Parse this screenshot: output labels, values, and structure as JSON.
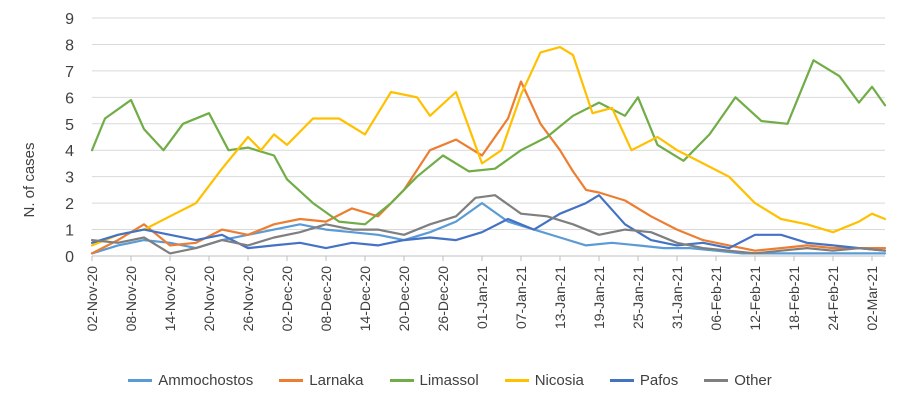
{
  "chart_data": {
    "type": "line",
    "ylabel": "N. of cases",
    "xlabel": "",
    "ylim": [
      0,
      9
    ],
    "yticks": [
      0,
      1,
      2,
      3,
      4,
      5,
      6,
      7,
      8,
      9
    ],
    "grid": true,
    "legend_position": "bottom",
    "x_start": "02-Nov-20",
    "x_end": "04-Mar-21",
    "x_ticks": [
      "02-Nov-20",
      "08-Nov-20",
      "14-Nov-20",
      "20-Nov-20",
      "26-Nov-20",
      "02-Dec-20",
      "08-Dec-20",
      "14-Dec-20",
      "20-Dec-20",
      "26-Dec-20",
      "01-Jan-21",
      "07-Jan-21",
      "13-Jan-21",
      "19-Jan-21",
      "25-Jan-21",
      "31-Jan-21",
      "06-Feb-21",
      "12-Feb-21",
      "18-Feb-21",
      "24-Feb-21",
      "02-Mar-21"
    ],
    "series": [
      {
        "name": "Ammochostos",
        "color": "#5b9bd5",
        "points": [
          [
            "02-Nov-20",
            0.1
          ],
          [
            "06-Nov-20",
            0.4
          ],
          [
            "10-Nov-20",
            0.6
          ],
          [
            "14-Nov-20",
            0.5
          ],
          [
            "18-Nov-20",
            0.3
          ],
          [
            "22-Nov-20",
            0.6
          ],
          [
            "26-Nov-20",
            0.8
          ],
          [
            "30-Nov-20",
            1.0
          ],
          [
            "04-Dec-20",
            1.2
          ],
          [
            "08-Dec-20",
            1.0
          ],
          [
            "12-Dec-20",
            0.9
          ],
          [
            "16-Dec-20",
            0.8
          ],
          [
            "20-Dec-20",
            0.6
          ],
          [
            "24-Dec-20",
            0.9
          ],
          [
            "28-Dec-20",
            1.3
          ],
          [
            "01-Jan-21",
            2.0
          ],
          [
            "05-Jan-21",
            1.3
          ],
          [
            "09-Jan-21",
            1.0
          ],
          [
            "13-Jan-21",
            0.7
          ],
          [
            "17-Jan-21",
            0.4
          ],
          [
            "21-Jan-21",
            0.5
          ],
          [
            "25-Jan-21",
            0.4
          ],
          [
            "29-Jan-21",
            0.3
          ],
          [
            "02-Feb-21",
            0.3
          ],
          [
            "06-Feb-21",
            0.2
          ],
          [
            "10-Feb-21",
            0.1
          ],
          [
            "14-Feb-21",
            0.1
          ],
          [
            "18-Feb-21",
            0.1
          ],
          [
            "22-Feb-21",
            0.1
          ],
          [
            "26-Feb-21",
            0.1
          ],
          [
            "04-Mar-21",
            0.1
          ]
        ]
      },
      {
        "name": "Larnaka",
        "color": "#ed7d31",
        "points": [
          [
            "02-Nov-20",
            0.1
          ],
          [
            "06-Nov-20",
            0.6
          ],
          [
            "10-Nov-20",
            1.2
          ],
          [
            "14-Nov-20",
            0.4
          ],
          [
            "18-Nov-20",
            0.5
          ],
          [
            "22-Nov-20",
            1.0
          ],
          [
            "26-Nov-20",
            0.8
          ],
          [
            "30-Nov-20",
            1.2
          ],
          [
            "04-Dec-20",
            1.4
          ],
          [
            "08-Dec-20",
            1.3
          ],
          [
            "12-Dec-20",
            1.8
          ],
          [
            "16-Dec-20",
            1.5
          ],
          [
            "20-Dec-20",
            2.5
          ],
          [
            "24-Dec-20",
            4.0
          ],
          [
            "28-Dec-20",
            4.4
          ],
          [
            "01-Jan-21",
            3.8
          ],
          [
            "05-Jan-21",
            5.2
          ],
          [
            "07-Jan-21",
            6.6
          ],
          [
            "10-Jan-21",
            5.0
          ],
          [
            "13-Jan-21",
            4.0
          ],
          [
            "15-Jan-21",
            3.2
          ],
          [
            "17-Jan-21",
            2.5
          ],
          [
            "19-Jan-21",
            2.4
          ],
          [
            "23-Jan-21",
            2.1
          ],
          [
            "27-Jan-21",
            1.5
          ],
          [
            "31-Jan-21",
            1.0
          ],
          [
            "04-Feb-21",
            0.6
          ],
          [
            "08-Feb-21",
            0.4
          ],
          [
            "12-Feb-21",
            0.2
          ],
          [
            "16-Feb-21",
            0.3
          ],
          [
            "20-Feb-21",
            0.4
          ],
          [
            "24-Feb-21",
            0.3
          ],
          [
            "28-Feb-21",
            0.3
          ],
          [
            "04-Mar-21",
            0.3
          ]
        ]
      },
      {
        "name": "Limassol",
        "color": "#70ad47",
        "points": [
          [
            "02-Nov-20",
            4.0
          ],
          [
            "04-Nov-20",
            5.2
          ],
          [
            "08-Nov-20",
            5.9
          ],
          [
            "10-Nov-20",
            4.8
          ],
          [
            "13-Nov-20",
            4.0
          ],
          [
            "16-Nov-20",
            5.0
          ],
          [
            "20-Nov-20",
            5.4
          ],
          [
            "23-Nov-20",
            4.0
          ],
          [
            "26-Nov-20",
            4.1
          ],
          [
            "30-Nov-20",
            3.8
          ],
          [
            "02-Dec-20",
            2.9
          ],
          [
            "06-Dec-20",
            2.0
          ],
          [
            "10-Dec-20",
            1.3
          ],
          [
            "14-Dec-20",
            1.2
          ],
          [
            "18-Dec-20",
            2.0
          ],
          [
            "22-Dec-20",
            3.0
          ],
          [
            "26-Dec-20",
            3.8
          ],
          [
            "30-Dec-20",
            3.2
          ],
          [
            "03-Jan-21",
            3.3
          ],
          [
            "07-Jan-21",
            4.0
          ],
          [
            "11-Jan-21",
            4.5
          ],
          [
            "15-Jan-21",
            5.3
          ],
          [
            "19-Jan-21",
            5.8
          ],
          [
            "23-Jan-21",
            5.3
          ],
          [
            "25-Jan-21",
            6.0
          ],
          [
            "28-Jan-21",
            4.2
          ],
          [
            "01-Feb-21",
            3.6
          ],
          [
            "05-Feb-21",
            4.6
          ],
          [
            "09-Feb-21",
            6.0
          ],
          [
            "13-Feb-21",
            5.1
          ],
          [
            "17-Feb-21",
            5.0
          ],
          [
            "21-Feb-21",
            7.4
          ],
          [
            "25-Feb-21",
            6.8
          ],
          [
            "28-Feb-21",
            5.8
          ],
          [
            "02-Mar-21",
            6.4
          ],
          [
            "04-Mar-21",
            5.7
          ]
        ]
      },
      {
        "name": "Nicosia",
        "color": "#ffc000",
        "points": [
          [
            "02-Nov-20",
            0.4
          ],
          [
            "06-Nov-20",
            0.8
          ],
          [
            "10-Nov-20",
            1.0
          ],
          [
            "14-Nov-20",
            1.5
          ],
          [
            "18-Nov-20",
            2.0
          ],
          [
            "22-Nov-20",
            3.3
          ],
          [
            "26-Nov-20",
            4.5
          ],
          [
            "28-Nov-20",
            4.0
          ],
          [
            "30-Nov-20",
            4.6
          ],
          [
            "02-Dec-20",
            4.2
          ],
          [
            "06-Dec-20",
            5.2
          ],
          [
            "10-Dec-20",
            5.2
          ],
          [
            "14-Dec-20",
            4.6
          ],
          [
            "18-Dec-20",
            6.2
          ],
          [
            "22-Dec-20",
            6.0
          ],
          [
            "24-Dec-20",
            5.3
          ],
          [
            "28-Dec-20",
            6.2
          ],
          [
            "01-Jan-21",
            3.5
          ],
          [
            "04-Jan-21",
            4.0
          ],
          [
            "07-Jan-21",
            6.1
          ],
          [
            "10-Jan-21",
            7.7
          ],
          [
            "13-Jan-21",
            7.9
          ],
          [
            "15-Jan-21",
            7.6
          ],
          [
            "18-Jan-21",
            5.4
          ],
          [
            "21-Jan-21",
            5.6
          ],
          [
            "24-Jan-21",
            4.0
          ],
          [
            "28-Jan-21",
            4.5
          ],
          [
            "31-Jan-21",
            4.0
          ],
          [
            "04-Feb-21",
            3.5
          ],
          [
            "08-Feb-21",
            3.0
          ],
          [
            "12-Feb-21",
            2.0
          ],
          [
            "16-Feb-21",
            1.4
          ],
          [
            "20-Feb-21",
            1.2
          ],
          [
            "24-Feb-21",
            0.9
          ],
          [
            "28-Feb-21",
            1.3
          ],
          [
            "02-Mar-21",
            1.6
          ],
          [
            "04-Mar-21",
            1.4
          ]
        ]
      },
      {
        "name": "Pafos",
        "color": "#4472c4",
        "points": [
          [
            "02-Nov-20",
            0.5
          ],
          [
            "06-Nov-20",
            0.8
          ],
          [
            "10-Nov-20",
            1.0
          ],
          [
            "14-Nov-20",
            0.8
          ],
          [
            "18-Nov-20",
            0.6
          ],
          [
            "22-Nov-20",
            0.8
          ],
          [
            "26-Nov-20",
            0.3
          ],
          [
            "30-Nov-20",
            0.4
          ],
          [
            "04-Dec-20",
            0.5
          ],
          [
            "08-Dec-20",
            0.3
          ],
          [
            "12-Dec-20",
            0.5
          ],
          [
            "16-Dec-20",
            0.4
          ],
          [
            "20-Dec-20",
            0.6
          ],
          [
            "24-Dec-20",
            0.7
          ],
          [
            "28-Dec-20",
            0.6
          ],
          [
            "01-Jan-21",
            0.9
          ],
          [
            "05-Jan-21",
            1.4
          ],
          [
            "09-Jan-21",
            1.0
          ],
          [
            "13-Jan-21",
            1.6
          ],
          [
            "17-Jan-21",
            2.0
          ],
          [
            "19-Jan-21",
            2.3
          ],
          [
            "23-Jan-21",
            1.2
          ],
          [
            "27-Jan-21",
            0.6
          ],
          [
            "31-Jan-21",
            0.4
          ],
          [
            "04-Feb-21",
            0.5
          ],
          [
            "08-Feb-21",
            0.3
          ],
          [
            "12-Feb-21",
            0.8
          ],
          [
            "16-Feb-21",
            0.8
          ],
          [
            "20-Feb-21",
            0.5
          ],
          [
            "24-Feb-21",
            0.4
          ],
          [
            "28-Feb-21",
            0.3
          ],
          [
            "04-Mar-21",
            0.2
          ]
        ]
      },
      {
        "name": "Other",
        "color": "#7f7f7f",
        "points": [
          [
            "02-Nov-20",
            0.6
          ],
          [
            "06-Nov-20",
            0.5
          ],
          [
            "10-Nov-20",
            0.7
          ],
          [
            "14-Nov-20",
            0.1
          ],
          [
            "18-Nov-20",
            0.3
          ],
          [
            "22-Nov-20",
            0.6
          ],
          [
            "26-Nov-20",
            0.4
          ],
          [
            "30-Nov-20",
            0.7
          ],
          [
            "04-Dec-20",
            0.9
          ],
          [
            "08-Dec-20",
            1.2
          ],
          [
            "12-Dec-20",
            1.0
          ],
          [
            "16-Dec-20",
            1.0
          ],
          [
            "20-Dec-20",
            0.8
          ],
          [
            "24-Dec-20",
            1.2
          ],
          [
            "28-Dec-20",
            1.5
          ],
          [
            "31-Dec-20",
            2.2
          ],
          [
            "03-Jan-21",
            2.3
          ],
          [
            "07-Jan-21",
            1.6
          ],
          [
            "11-Jan-21",
            1.5
          ],
          [
            "15-Jan-21",
            1.2
          ],
          [
            "19-Jan-21",
            0.8
          ],
          [
            "23-Jan-21",
            1.0
          ],
          [
            "27-Jan-21",
            0.9
          ],
          [
            "31-Jan-21",
            0.5
          ],
          [
            "04-Feb-21",
            0.3
          ],
          [
            "08-Feb-21",
            0.2
          ],
          [
            "12-Feb-21",
            0.1
          ],
          [
            "16-Feb-21",
            0.2
          ],
          [
            "20-Feb-21",
            0.3
          ],
          [
            "24-Feb-21",
            0.2
          ],
          [
            "28-Feb-21",
            0.3
          ],
          [
            "04-Mar-21",
            0.2
          ]
        ]
      }
    ]
  }
}
